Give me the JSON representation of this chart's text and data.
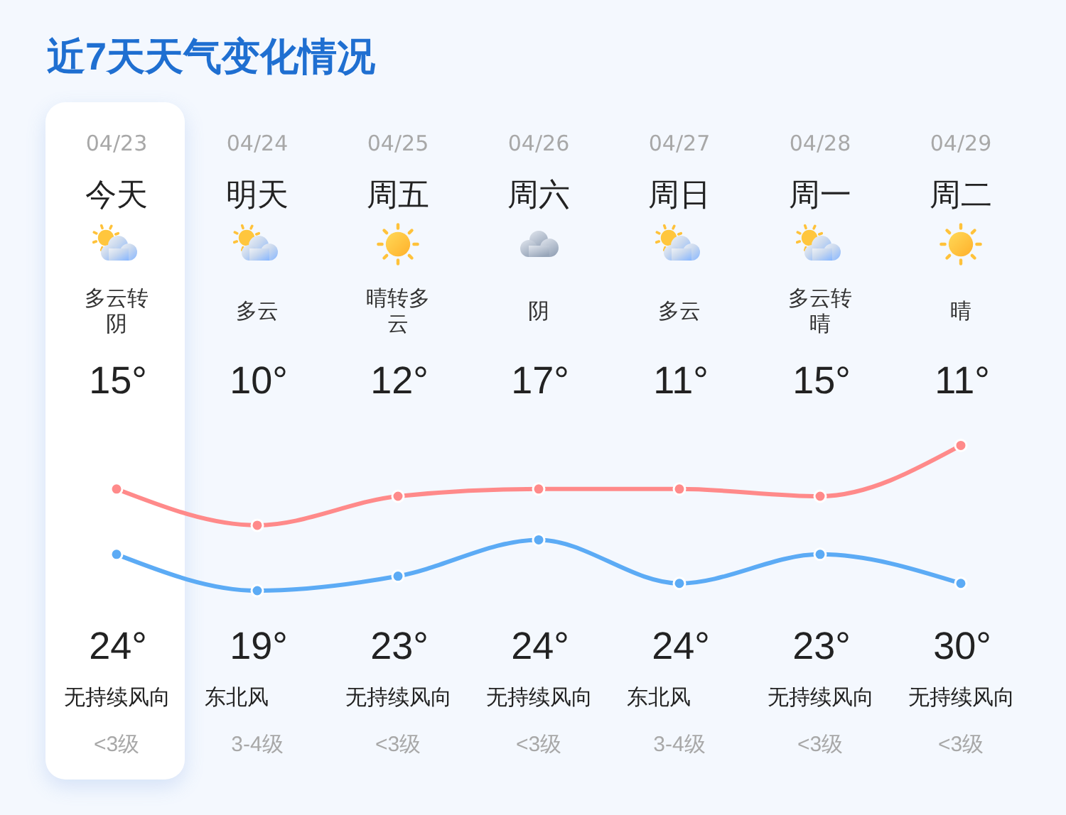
{
  "chart_data": {
    "type": "line",
    "title": "近7天天气变化情况",
    "categories": [
      "04/23",
      "04/24",
      "04/25",
      "04/26",
      "04/27",
      "04/28",
      "04/29"
    ],
    "series": [
      {
        "color": "#5cabf5",
        "values": [
          15,
          10,
          12,
          17,
          11,
          15,
          11
        ],
        "value_labels": [
          "15°",
          "10°",
          "12°",
          "17°",
          "11°",
          "15°",
          "11°"
        ]
      },
      {
        "color": "#ff8a8a",
        "values": [
          24,
          19,
          23,
          24,
          24,
          23,
          30
        ],
        "value_labels": [
          "24°",
          "19°",
          "23°",
          "24°",
          "24°",
          "23°",
          "30°"
        ]
      }
    ],
    "tick_labels": "x",
    "marker": "circle",
    "line_style": "solid",
    "annotations": [
      "今天",
      "明天",
      "周五",
      "周六",
      "周日",
      "周一",
      "周二",
      "多云转阴",
      "多云",
      "晴转多云",
      "阴",
      "多云",
      "多云转晴",
      "晴",
      "无持续风向",
      "东北风",
      "无持续风向",
      "无持续风向",
      "东北风",
      "无持续风向",
      "无持续风向",
      "<3级",
      "3-4级",
      "<3级",
      "<3级",
      "3-4级",
      "<3级",
      "<3级"
    ]
  }
}
